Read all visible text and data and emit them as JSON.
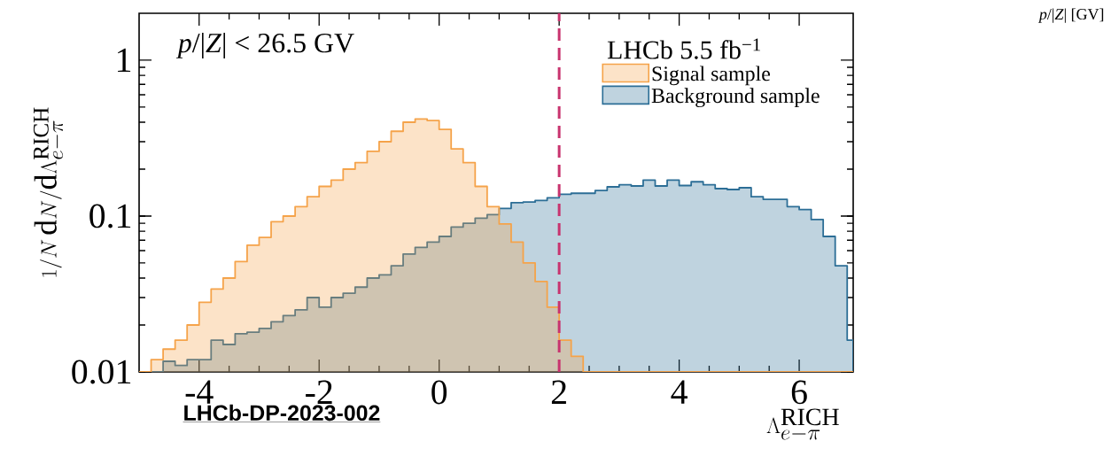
{
  "chart_data": {
    "type": "histogram",
    "xlabel": "\\Lambda^{\\mathrm{RICH}}_{e-\\pi}",
    "ylabel": "1/N\\,\\mathrm{d}N/\\mathrm{d}\\Lambda^{\\mathrm{RICH}}_{e-\\pi}",
    "legend_title": "LHCb 5.5 fb$^{−1}$",
    "annotations": [
      "*p*/|*Z*| < 26.5 GV",
      "LHCb-DP-2023-002",
      "*p*/|*Z*| [GV]"
    ],
    "bins": [
      -5.0,
      -4.8,
      -4.6,
      -4.4,
      -4.2,
      -4.0,
      -3.8,
      -3.6,
      -3.4,
      -3.2,
      -3.0,
      -2.8,
      -2.6,
      -2.4,
      -2.2,
      -2.0,
      -1.8,
      -1.6,
      -1.4,
      -1.2,
      -1.0,
      -0.8,
      -0.6,
      -0.4,
      -0.2,
      0.0,
      0.2,
      0.4,
      0.6,
      0.8,
      1.0,
      1.2,
      1.4,
      1.6,
      1.8,
      2.0,
      2.2,
      2.4,
      2.6,
      2.8,
      3.0,
      3.2,
      3.4,
      3.6,
      3.8,
      4.0,
      4.2,
      4.4,
      4.6,
      4.8,
      5.0,
      5.2,
      5.4,
      5.6,
      5.8,
      6.0,
      6.2,
      6.4,
      6.6,
      6.8,
      6.9
    ],
    "series": [
      {
        "name": "Signal sample",
        "color": "#f5a34a",
        "values": [
          null,
          0.012,
          0.014,
          0.016,
          0.02,
          0.028,
          0.034,
          0.04,
          0.051,
          0.065,
          0.073,
          0.092,
          0.1,
          0.115,
          0.133,
          0.155,
          0.17,
          0.2,
          0.22,
          0.26,
          0.3,
          0.35,
          0.4,
          0.42,
          0.41,
          0.36,
          0.27,
          0.22,
          0.155,
          0.115,
          0.089,
          0.068,
          0.05,
          0.038,
          0.026,
          0.016,
          0.0126,
          null,
          null,
          null,
          null,
          null,
          null,
          null,
          null,
          null,
          null,
          null,
          null,
          null,
          null,
          null,
          null,
          null,
          null,
          null,
          null,
          null,
          null,
          null
        ]
      },
      {
        "name": "Background sample",
        "color": "#2c6e96",
        "values": [
          null,
          null,
          0.0117,
          0.011,
          0.012,
          0.012,
          0.016,
          0.015,
          0.0176,
          0.018,
          0.019,
          0.021,
          0.023,
          0.025,
          0.03,
          0.026,
          0.03,
          0.032,
          0.035,
          0.04,
          0.042,
          0.048,
          0.057,
          0.063,
          0.068,
          0.074,
          0.085,
          0.09,
          0.097,
          0.102,
          0.112,
          0.122,
          0.123,
          0.126,
          0.131,
          0.138,
          0.14,
          0.14,
          0.146,
          0.154,
          0.159,
          0.156,
          0.17,
          0.156,
          0.17,
          0.157,
          0.166,
          0.159,
          0.15,
          0.148,
          0.152,
          0.133,
          0.128,
          0.128,
          0.115,
          0.11,
          0.095,
          0.074,
          0.048,
          0.016
        ]
      }
    ],
    "xlim": [
      -5,
      6.9
    ],
    "ylim": [
      0.01,
      2
    ],
    "xticks": [
      -4,
      -2,
      0,
      2,
      4,
      6
    ],
    "yticks": [
      0.01,
      0.1,
      1
    ],
    "log": "y",
    "grid": false,
    "legend": "top right",
    "ref_lines": [
      {
        "axis": "x",
        "value": 2,
        "color": "#c8336e",
        "line_style": "dashed"
      }
    ]
  }
}
